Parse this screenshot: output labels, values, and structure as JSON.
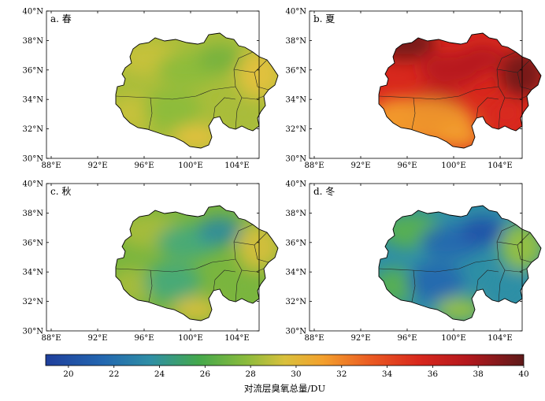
{
  "panels": [
    {
      "label": "a. 春",
      "season": "spring",
      "colors": [
        "#e7c13e",
        "#c9c23b",
        "#a9bd3a",
        "#8bbb3c",
        "#74b13d"
      ]
    },
    {
      "label": "b. 夏",
      "season": "summer",
      "colors": [
        "#f3a02d",
        "#ea5a22",
        "#d8281d",
        "#b5181d",
        "#6e1a1a"
      ]
    },
    {
      "label": "c. 秋",
      "season": "autumn",
      "colors": [
        "#d9c03c",
        "#a9bd3a",
        "#7ab53e",
        "#44a87c",
        "#2e8aa0"
      ]
    },
    {
      "label": "d. 冬",
      "season": "winter",
      "colors": [
        "#9cc43b",
        "#5bb24a",
        "#2f8fa5",
        "#2367b0",
        "#1f4fa8"
      ]
    }
  ],
  "axes": {
    "lon_ticks": [
      "88°E",
      "92°E",
      "96°E",
      "100°E",
      "104°E"
    ],
    "lat_ticks": [
      "40°N",
      "38°N",
      "36°N",
      "34°N",
      "32°N",
      "30°N"
    ]
  },
  "colorbar": {
    "ticks": [
      "20",
      "22",
      "24",
      "26",
      "28",
      "30",
      "32",
      "34",
      "36",
      "38",
      "40"
    ],
    "title": "对流层臭氧总量/DU",
    "range": [
      19,
      40
    ]
  }
}
